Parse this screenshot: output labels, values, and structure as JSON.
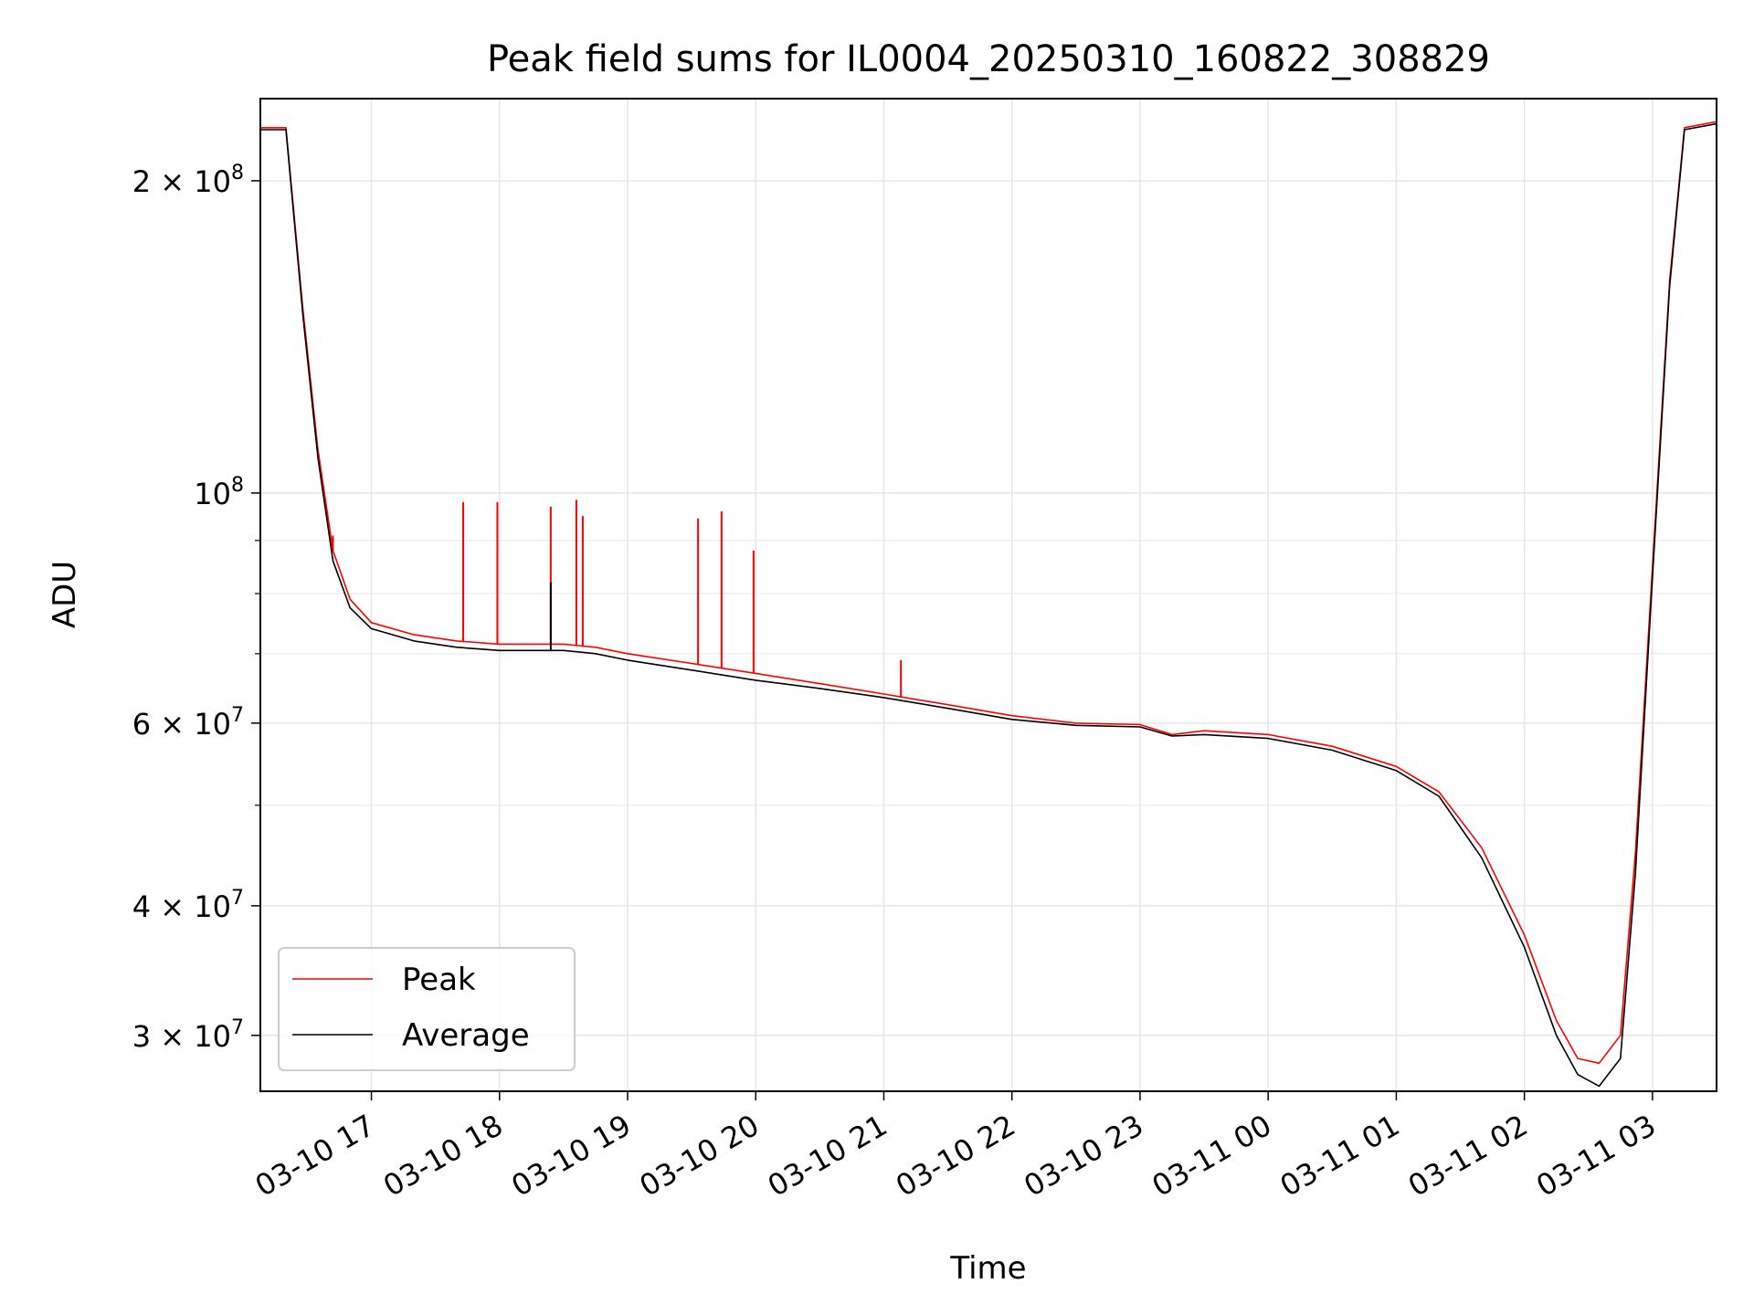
{
  "chart_data": {
    "type": "line",
    "title": "Peak field sums for IL0004_20250310_160822_308829",
    "xlabel": "Time",
    "ylabel": "ADU",
    "y_scale": "log",
    "xlim": [
      "2025-03-10 16:08",
      "2025-03-11 03:30"
    ],
    "ylim": [
      26500000,
      240000000
    ],
    "grid": true,
    "legend_position": "lower-left",
    "x_ticks": [
      {
        "t": "2025-03-10 17:00",
        "label": "03-10 17"
      },
      {
        "t": "2025-03-10 18:00",
        "label": "03-10 18"
      },
      {
        "t": "2025-03-10 19:00",
        "label": "03-10 19"
      },
      {
        "t": "2025-03-10 20:00",
        "label": "03-10 20"
      },
      {
        "t": "2025-03-10 21:00",
        "label": "03-10 21"
      },
      {
        "t": "2025-03-10 22:00",
        "label": "03-10 22"
      },
      {
        "t": "2025-03-10 23:00",
        "label": "03-10 23"
      },
      {
        "t": "2025-03-11 00:00",
        "label": "03-11 00"
      },
      {
        "t": "2025-03-11 01:00",
        "label": "03-11 01"
      },
      {
        "t": "2025-03-11 02:00",
        "label": "03-11 02"
      },
      {
        "t": "2025-03-11 03:00",
        "label": "03-11 03"
      }
    ],
    "y_ticks": [
      {
        "value": 30000000,
        "mant": "3",
        "exp": "7"
      },
      {
        "value": 40000000,
        "mant": "4",
        "exp": "7"
      },
      {
        "value": 60000000,
        "mant": "6",
        "exp": "7"
      },
      {
        "value": 100000000,
        "mant": "",
        "exp": "8"
      },
      {
        "value": 200000000,
        "mant": "2",
        "exp": "8"
      }
    ],
    "y_minor_ticks": [
      50000000,
      70000000,
      80000000,
      90000000
    ],
    "series": [
      {
        "name": "Peak",
        "color": "#ff0000",
        "points": [
          [
            "2025-03-10 16:08",
            225000000
          ],
          [
            "2025-03-10 16:20",
            225000000
          ],
          [
            "2025-03-10 16:28",
            150000000
          ],
          [
            "2025-03-10 16:35",
            110000000
          ],
          [
            "2025-03-10 16:42",
            88000000
          ],
          [
            "2025-03-10 16:50",
            79000000
          ],
          [
            "2025-03-10 17:00",
            75000000
          ],
          [
            "2025-03-10 17:20",
            73000000
          ],
          [
            "2025-03-10 17:40",
            72000000
          ],
          [
            "2025-03-10 18:00",
            71500000
          ],
          [
            "2025-03-10 18:15",
            71500000
          ],
          [
            "2025-03-10 18:30",
            71500000
          ],
          [
            "2025-03-10 18:45",
            71000000
          ],
          [
            "2025-03-10 19:00",
            70000000
          ],
          [
            "2025-03-10 19:30",
            68500000
          ],
          [
            "2025-03-10 20:00",
            67000000
          ],
          [
            "2025-03-10 20:30",
            65500000
          ],
          [
            "2025-03-10 21:00",
            64000000
          ],
          [
            "2025-03-10 21:30",
            62500000
          ],
          [
            "2025-03-10 22:00",
            61000000
          ],
          [
            "2025-03-10 22:30",
            60000000
          ],
          [
            "2025-03-10 23:00",
            59800000
          ],
          [
            "2025-03-10 23:15",
            58500000
          ],
          [
            "2025-03-10 23:30",
            59000000
          ],
          [
            "2025-03-11 00:00",
            58500000
          ],
          [
            "2025-03-11 00:30",
            57000000
          ],
          [
            "2025-03-11 01:00",
            54500000
          ],
          [
            "2025-03-11 01:20",
            51500000
          ],
          [
            "2025-03-11 01:40",
            45500000
          ],
          [
            "2025-03-11 02:00",
            37500000
          ],
          [
            "2025-03-11 02:15",
            31000000
          ],
          [
            "2025-03-11 02:25",
            28500000
          ],
          [
            "2025-03-11 02:35",
            28200000
          ],
          [
            "2025-03-11 02:45",
            30000000
          ],
          [
            "2025-03-11 02:52",
            45000000
          ],
          [
            "2025-03-11 03:00",
            85000000
          ],
          [
            "2025-03-11 03:08",
            160000000
          ],
          [
            "2025-03-11 03:15",
            225000000
          ],
          [
            "2025-03-11 03:30",
            228000000
          ]
        ],
        "spikes": [
          [
            "2025-03-10 17:43",
            98000000
          ],
          [
            "2025-03-10 17:59",
            98000000
          ],
          [
            "2025-03-10 18:24",
            97000000
          ],
          [
            "2025-03-10 18:36",
            98500000
          ],
          [
            "2025-03-10 18:39",
            95000000
          ],
          [
            "2025-03-10 19:33",
            94500000
          ],
          [
            "2025-03-10 19:44",
            96000000
          ],
          [
            "2025-03-10 19:59",
            88000000
          ],
          [
            "2025-03-10 21:08",
            69000000
          ],
          [
            "2025-03-10 16:42",
            91000000
          ]
        ]
      },
      {
        "name": "Average",
        "color": "#000000",
        "points": [
          [
            "2025-03-10 16:08",
            224000000
          ],
          [
            "2025-03-10 16:20",
            224000000
          ],
          [
            "2025-03-10 16:28",
            148000000
          ],
          [
            "2025-03-10 16:35",
            108000000
          ],
          [
            "2025-03-10 16:42",
            86000000
          ],
          [
            "2025-03-10 16:50",
            77500000
          ],
          [
            "2025-03-10 17:00",
            74000000
          ],
          [
            "2025-03-10 17:20",
            72000000
          ],
          [
            "2025-03-10 17:40",
            71000000
          ],
          [
            "2025-03-10 18:00",
            70500000
          ],
          [
            "2025-03-10 18:15",
            70500000
          ],
          [
            "2025-03-10 18:30",
            70500000
          ],
          [
            "2025-03-10 18:45",
            70000000
          ],
          [
            "2025-03-10 19:00",
            69000000
          ],
          [
            "2025-03-10 19:30",
            67500000
          ],
          [
            "2025-03-10 20:00",
            66000000
          ],
          [
            "2025-03-10 20:30",
            64800000
          ],
          [
            "2025-03-10 21:00",
            63500000
          ],
          [
            "2025-03-10 21:30",
            62000000
          ],
          [
            "2025-03-10 22:00",
            60500000
          ],
          [
            "2025-03-10 22:30",
            59700000
          ],
          [
            "2025-03-10 23:00",
            59500000
          ],
          [
            "2025-03-10 23:15",
            58300000
          ],
          [
            "2025-03-10 23:30",
            58500000
          ],
          [
            "2025-03-11 00:00",
            58000000
          ],
          [
            "2025-03-11 00:30",
            56500000
          ],
          [
            "2025-03-11 01:00",
            54000000
          ],
          [
            "2025-03-11 01:20",
            51000000
          ],
          [
            "2025-03-11 01:40",
            44500000
          ],
          [
            "2025-03-11 02:00",
            36500000
          ],
          [
            "2025-03-11 02:15",
            30000000
          ],
          [
            "2025-03-11 02:25",
            27500000
          ],
          [
            "2025-03-11 02:35",
            26800000
          ],
          [
            "2025-03-11 02:45",
            28500000
          ],
          [
            "2025-03-11 02:52",
            43000000
          ],
          [
            "2025-03-11 03:00",
            83000000
          ],
          [
            "2025-03-11 03:08",
            158000000
          ],
          [
            "2025-03-11 03:15",
            224000000
          ],
          [
            "2025-03-11 03:30",
            227000000
          ]
        ],
        "spikes": [
          [
            "2025-03-10 18:24",
            82000000
          ]
        ]
      }
    ]
  }
}
